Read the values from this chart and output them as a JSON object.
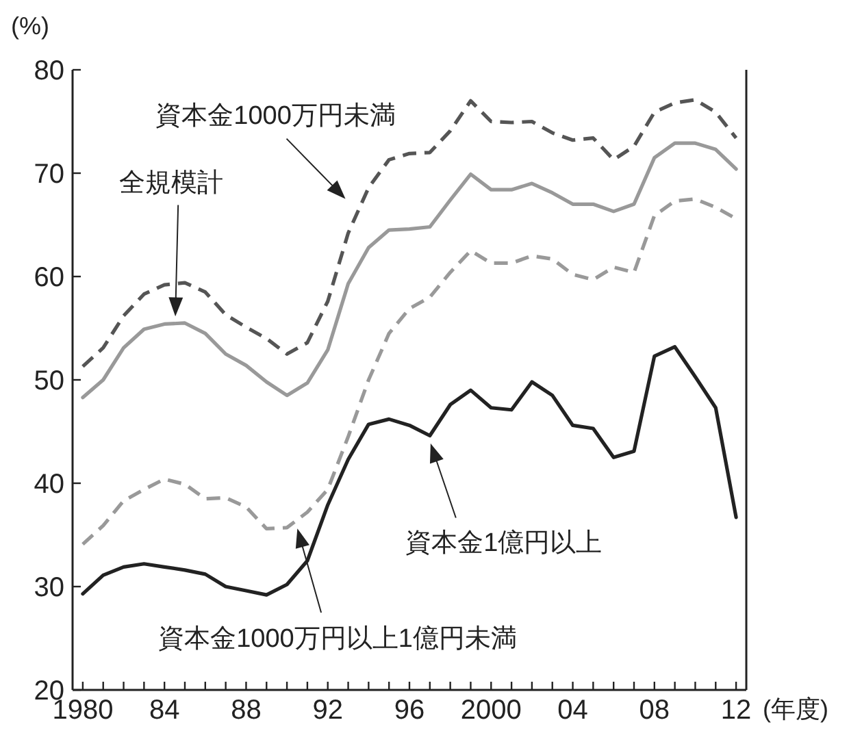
{
  "chart_data": {
    "type": "line",
    "ylabel": "(%)",
    "xlabel": "(年度)",
    "x": [
      1980,
      1981,
      1982,
      1983,
      1984,
      1985,
      1986,
      1987,
      1988,
      1989,
      1990,
      1991,
      1992,
      1993,
      1994,
      1995,
      1996,
      1997,
      1998,
      1999,
      2000,
      2001,
      2002,
      2003,
      2004,
      2005,
      2006,
      2007,
      2008,
      2009,
      2010,
      2011,
      2012
    ],
    "xlim": [
      1979.5,
      2012.5
    ],
    "xticks": [
      {
        "value": 1980,
        "label": "1980"
      },
      {
        "value": 1981,
        "label": null
      },
      {
        "value": 1982,
        "label": null
      },
      {
        "value": 1983,
        "label": null
      },
      {
        "value": 1984,
        "label": "84"
      },
      {
        "value": 1985,
        "label": null
      },
      {
        "value": 1986,
        "label": null
      },
      {
        "value": 1987,
        "label": null
      },
      {
        "value": 1988,
        "label": "88"
      },
      {
        "value": 1989,
        "label": null
      },
      {
        "value": 1990,
        "label": null
      },
      {
        "value": 1991,
        "label": null
      },
      {
        "value": 1992,
        "label": "92"
      },
      {
        "value": 1993,
        "label": null
      },
      {
        "value": 1994,
        "label": null
      },
      {
        "value": 1995,
        "label": null
      },
      {
        "value": 1996,
        "label": "96"
      },
      {
        "value": 1997,
        "label": null
      },
      {
        "value": 1998,
        "label": null
      },
      {
        "value": 1999,
        "label": null
      },
      {
        "value": 2000,
        "label": "2000"
      },
      {
        "value": 2001,
        "label": null
      },
      {
        "value": 2002,
        "label": null
      },
      {
        "value": 2003,
        "label": null
      },
      {
        "value": 2004,
        "label": "04"
      },
      {
        "value": 2005,
        "label": null
      },
      {
        "value": 2006,
        "label": null
      },
      {
        "value": 2007,
        "label": null
      },
      {
        "value": 2008,
        "label": "08"
      },
      {
        "value": 2009,
        "label": null
      },
      {
        "value": 2010,
        "label": null
      },
      {
        "value": 2011,
        "label": null
      },
      {
        "value": 2012,
        "label": "12"
      }
    ],
    "ylim": [
      20,
      80
    ],
    "yticks": [
      20,
      30,
      40,
      50,
      60,
      70,
      80
    ],
    "grid": false,
    "series": [
      {
        "color": "#555555",
        "line_style": "dashed",
        "values": [
          51.3,
          53.1,
          56.2,
          58.3,
          59.2,
          59.4,
          58.5,
          56.3,
          55.1,
          54.0,
          52.5,
          53.6,
          57.6,
          64.2,
          68.6,
          71.3,
          71.9,
          72.0,
          74.1,
          77.0,
          75.0,
          74.9,
          75.0,
          73.9,
          73.2,
          73.4,
          71.3,
          72.6,
          75.9,
          76.8,
          77.1,
          75.9,
          73.4
        ]
      },
      {
        "color": "#999999",
        "line_style": "solid",
        "values": [
          48.3,
          50.0,
          53.1,
          54.9,
          55.4,
          55.5,
          54.5,
          52.5,
          51.4,
          49.8,
          48.5,
          49.7,
          52.9,
          59.3,
          62.8,
          64.5,
          64.6,
          64.8,
          67.4,
          69.9,
          68.4,
          68.4,
          69.0,
          68.1,
          67.0,
          67.0,
          66.3,
          67.0,
          71.5,
          72.9,
          72.9,
          72.3,
          70.4
        ]
      },
      {
        "color": "#999999",
        "line_style": "dashed",
        "values": [
          34.1,
          35.9,
          38.3,
          39.4,
          40.4,
          39.9,
          38.5,
          38.6,
          37.7,
          35.6,
          35.7,
          37.2,
          39.4,
          44.5,
          50.0,
          54.5,
          56.9,
          58.0,
          60.4,
          62.5,
          61.3,
          61.3,
          62.0,
          61.7,
          60.2,
          59.7,
          60.9,
          60.4,
          65.9,
          67.3,
          67.5,
          66.7,
          65.6
        ]
      },
      {
        "color": "#222222",
        "line_style": "solid",
        "values": [
          29.3,
          31.1,
          31.9,
          32.2,
          31.9,
          31.6,
          31.2,
          30.0,
          29.6,
          29.2,
          30.2,
          32.5,
          37.9,
          42.3,
          45.7,
          46.2,
          45.6,
          44.6,
          47.6,
          49.0,
          47.3,
          47.1,
          49.8,
          48.5,
          45.6,
          45.3,
          42.5,
          43.1,
          52.3,
          53.2,
          50.3,
          47.3,
          36.7
        ]
      }
    ],
    "annotations": [
      "資本金1000万円未満",
      "全規模計",
      "資本金1000万円以上1億円未満",
      "資本金1億円以上"
    ]
  }
}
